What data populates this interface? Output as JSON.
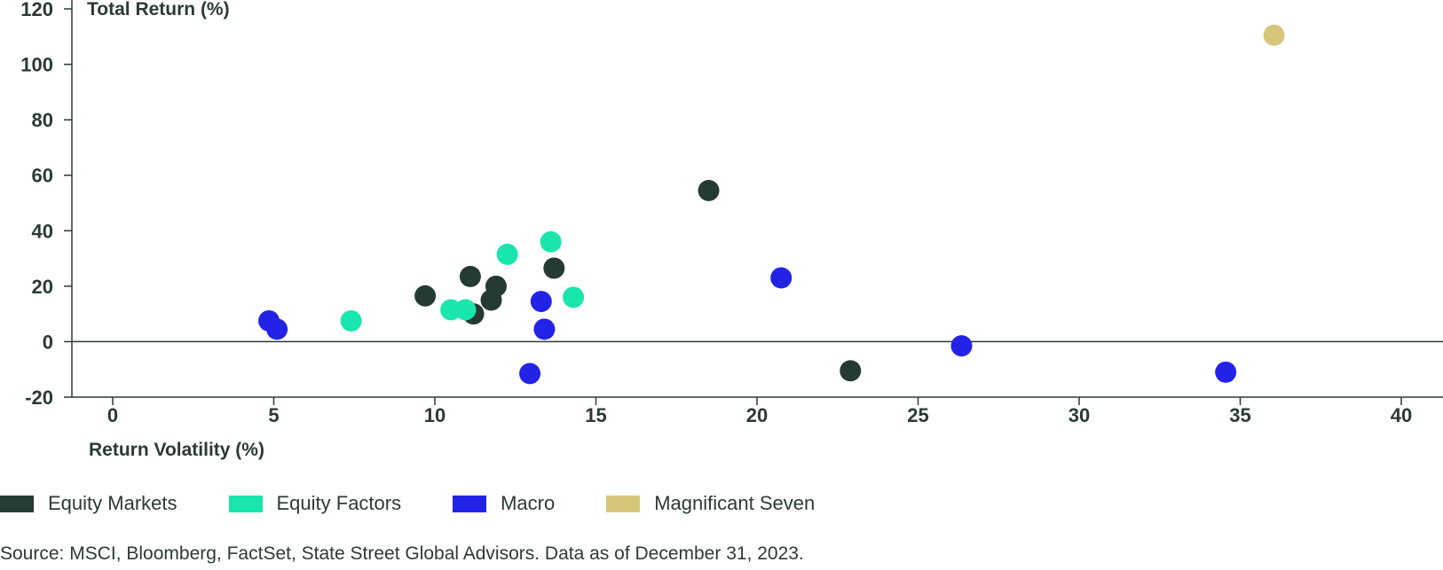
{
  "chart_data": {
    "type": "scatter",
    "title": "",
    "xlabel": "Return Volatility (%)",
    "ylabel": "Total Return (%)",
    "xlim": [
      -1.5,
      41.5
    ],
    "ylim": [
      -20,
      120
    ],
    "x_ticks": [
      "0",
      "5",
      "10",
      "15",
      "20",
      "25",
      "30",
      "35",
      "40"
    ],
    "x_tick_values": [
      0,
      5,
      10,
      15,
      20,
      25,
      30,
      35,
      40
    ],
    "y_ticks": [
      "-20",
      "0",
      "20",
      "40",
      "60",
      "80",
      "100",
      "120"
    ],
    "y_tick_values": [
      -20,
      0,
      20,
      40,
      60,
      80,
      100,
      120
    ],
    "series": [
      {
        "name": "Equity Markets",
        "color": "#253a30",
        "points": [
          {
            "x": 9.7,
            "y": 16.5
          },
          {
            "x": 11.1,
            "y": 23.5
          },
          {
            "x": 11.2,
            "y": 10.0
          },
          {
            "x": 11.75,
            "y": 15.0
          },
          {
            "x": 11.9,
            "y": 20.0
          },
          {
            "x": 13.7,
            "y": 26.5
          },
          {
            "x": 18.5,
            "y": 54.5
          },
          {
            "x": 22.9,
            "y": -10.5
          }
        ]
      },
      {
        "name": "Equity Factors",
        "color": "#19e6ac",
        "points": [
          {
            "x": 7.4,
            "y": 7.5
          },
          {
            "x": 10.5,
            "y": 11.5
          },
          {
            "x": 10.95,
            "y": 11.5
          },
          {
            "x": 12.25,
            "y": 31.5
          },
          {
            "x": 13.6,
            "y": 36.0
          },
          {
            "x": 14.3,
            "y": 16.0
          }
        ]
      },
      {
        "name": "Macro",
        "color": "#2323e8",
        "points": [
          {
            "x": 4.85,
            "y": 7.5
          },
          {
            "x": 5.1,
            "y": 4.5
          },
          {
            "x": 12.95,
            "y": -11.5
          },
          {
            "x": 13.3,
            "y": 14.5
          },
          {
            "x": 13.4,
            "y": 4.5
          },
          {
            "x": 20.75,
            "y": 23.0
          },
          {
            "x": 26.35,
            "y": -1.5
          },
          {
            "x": 34.55,
            "y": -11.0
          }
        ]
      },
      {
        "name": "Magnificant Seven",
        "color": "#d6c679",
        "points": [
          {
            "x": 36.05,
            "y": 110.5
          }
        ]
      }
    ]
  },
  "source": "Source: MSCI, Bloomberg, FactSet, State Street Global Advisors. Data as of December 31, 2023."
}
